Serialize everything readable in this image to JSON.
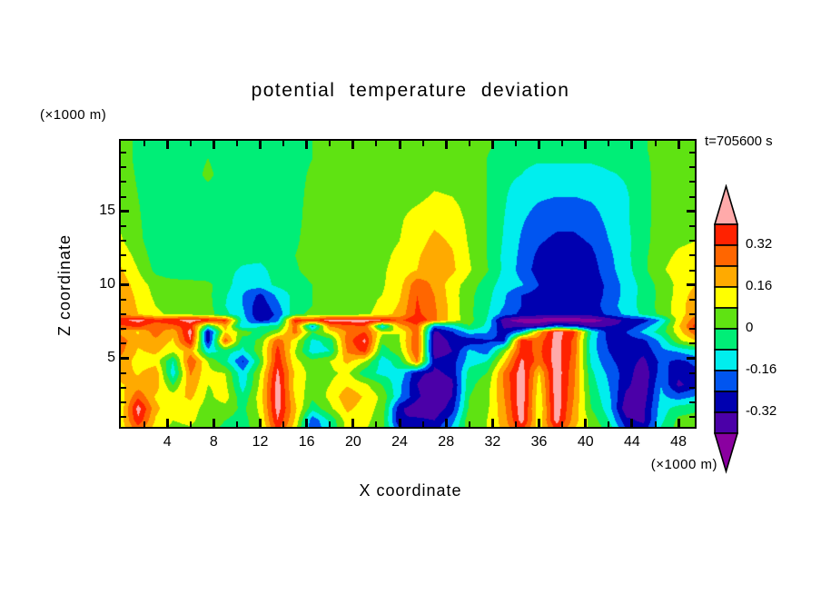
{
  "figure": {
    "title": "potential temperature deviation",
    "time_label": "t=705600 s",
    "x_axis": {
      "label": "X coordinate",
      "unit": "(×1000 m)"
    },
    "y_axis": {
      "label": "Z coordinate",
      "unit": "(×1000 m)"
    }
  },
  "colorbar": {
    "cell_colors_top_to_bottom": [
      "#ff2200",
      "#ff6600",
      "#ffaa00",
      "#ffff00",
      "#5fe312",
      "#00ee77",
      "#00eeee",
      "#0055f0",
      "#0000b0",
      "#4b00a8"
    ],
    "top_arrow_color": "#ffaaaa",
    "bottom_arrow_color": "#8a00a0",
    "labels": [
      {
        "text": "0.32",
        "boundary": 1
      },
      {
        "text": "0.16",
        "boundary": 3
      },
      {
        "text": "0",
        "boundary": 5
      },
      {
        "text": "-0.16",
        "boundary": 7
      },
      {
        "text": "-0.32",
        "boundary": 9
      }
    ]
  },
  "chart_data": {
    "type": "heatmap",
    "title": "potential temperature deviation",
    "xlabel": "X coordinate",
    "ylabel": "Z coordinate",
    "x_unit": "(×1000 m)",
    "z_unit": "(×1000 m)",
    "time": "t=705600 s",
    "x_range": [
      0,
      49.4
    ],
    "z_range": [
      0.35,
      19.8
    ],
    "x_major_ticks": [
      4,
      8,
      12,
      16,
      20,
      24,
      28,
      32,
      36,
      40,
      44,
      48
    ],
    "x_minor_step": 2,
    "y_major_ticks": [
      5,
      10,
      15
    ],
    "y_minor_step": 1,
    "levels": [
      -0.4,
      -0.32,
      -0.24,
      -0.16,
      -0.08,
      0.0,
      0.08,
      0.16,
      0.24,
      0.32,
      0.4
    ],
    "band_colors": [
      "#8a00a0",
      "#4b00a8",
      "#0000b0",
      "#0055f0",
      "#00eeee",
      "#00ee77",
      "#5fe312",
      "#ffff00",
      "#ffaa00",
      "#ff6600",
      "#ff2200",
      "#ffaaaa"
    ],
    "band_names": [
      "purple",
      "dark-violet",
      "navy",
      "blue",
      "cyan",
      "spring-green",
      "chartreuse",
      "yellow",
      "orange",
      "orange-red",
      "red",
      "pink"
    ],
    "xs": [
      0,
      1.5,
      3,
      4.5,
      6,
      7.5,
      9,
      10.5,
      12,
      13.5,
      15,
      16.5,
      18,
      19.5,
      21,
      22.5,
      24,
      25.5,
      27,
      28.5,
      30,
      31.5,
      33,
      34.5,
      36,
      37.5,
      39,
      40.5,
      42,
      43.5,
      45,
      46.5,
      48,
      49.5
    ],
    "zs": [
      0,
      0.8,
      1.6,
      2.4,
      3.2,
      4.0,
      4.8,
      5.5,
      6.2,
      6.8,
      7.2,
      7.6,
      8.0,
      8.6,
      9.3,
      10,
      11,
      12,
      13,
      14.5,
      16,
      17.5,
      18.6,
      19.3,
      19.8
    ],
    "values": [
      [
        0.1,
        0.25,
        0.1,
        0.05,
        0.06,
        0.02,
        -0.02,
        -0.04,
        0.05,
        0.32,
        0.1,
        -0.26,
        -0.1,
        0.1,
        0.08,
        0.04,
        -0.2,
        -0.22,
        -0.24,
        -0.12,
        0.05,
        0.08,
        0.18,
        0.3,
        0.12,
        0.3,
        0.15,
        0.06,
        0.0,
        -0.22,
        -0.26,
        -0.06,
        0.04,
        0.06
      ],
      [
        0.12,
        0.38,
        0.15,
        0.08,
        0.1,
        0.03,
        0.0,
        -0.04,
        0.08,
        0.4,
        0.15,
        -0.22,
        -0.06,
        0.12,
        0.1,
        0.04,
        -0.32,
        -0.3,
        -0.32,
        -0.2,
        0.06,
        0.08,
        0.2,
        0.44,
        0.1,
        0.44,
        0.2,
        0.05,
        -0.08,
        -0.3,
        -0.34,
        -0.1,
        0.02,
        0.04
      ],
      [
        0.1,
        0.44,
        0.18,
        0.1,
        0.12,
        0.04,
        0.05,
        -0.02,
        0.1,
        0.44,
        0.18,
        -0.05,
        0.06,
        0.18,
        0.12,
        0.05,
        -0.3,
        -0.38,
        -0.38,
        -0.28,
        0.02,
        0.06,
        0.22,
        0.46,
        0.08,
        0.46,
        0.22,
        0.0,
        -0.12,
        -0.38,
        -0.34,
        -0.12,
        -0.04,
        -0.02
      ],
      [
        0.12,
        0.3,
        0.15,
        0.12,
        0.18,
        0.06,
        0.12,
        -0.06,
        0.12,
        0.45,
        0.15,
        0.02,
        0.1,
        0.22,
        0.15,
        0.06,
        -0.15,
        -0.3,
        -0.4,
        -0.32,
        0.0,
        0.05,
        0.24,
        0.46,
        0.1,
        0.46,
        0.24,
        -0.02,
        -0.14,
        -0.34,
        -0.36,
        -0.14,
        -0.2,
        -0.15
      ],
      [
        0.15,
        0.2,
        0.2,
        0.0,
        0.22,
        0.08,
        0.1,
        -0.12,
        0.1,
        0.45,
        0.12,
        0.05,
        0.08,
        0.15,
        0.1,
        0.0,
        -0.14,
        -0.32,
        -0.38,
        -0.34,
        -0.02,
        0.04,
        0.25,
        0.46,
        0.12,
        0.46,
        0.25,
        -0.04,
        -0.16,
        -0.3,
        -0.38,
        -0.16,
        -0.34,
        -0.28
      ],
      [
        0.2,
        0.15,
        0.22,
        -0.13,
        0.25,
        0.1,
        0.08,
        -0.14,
        0.08,
        0.42,
        0.15,
        0.04,
        0.06,
        0.1,
        -0.05,
        -0.1,
        -0.1,
        -0.3,
        -0.34,
        -0.3,
        -0.04,
        0.0,
        0.26,
        0.45,
        0.15,
        0.46,
        0.26,
        -0.06,
        -0.18,
        -0.28,
        -0.38,
        -0.2,
        -0.3,
        -0.26
      ],
      [
        0.22,
        0.12,
        0.12,
        -0.08,
        0.32,
        0.08,
        -0.06,
        -0.25,
        0.0,
        0.38,
        0.1,
        0.03,
        0.08,
        0.18,
        0.08,
        -0.12,
        -0.04,
        0.25,
        -0.3,
        -0.28,
        -0.12,
        -0.08,
        0.15,
        0.42,
        0.28,
        0.45,
        0.28,
        -0.1,
        -0.22,
        -0.28,
        -0.34,
        -0.22,
        -0.26,
        -0.22
      ],
      [
        0.26,
        0.15,
        0.18,
        0.1,
        0.2,
        -0.12,
        -0.05,
        -0.1,
        0.05,
        0.35,
        0.08,
        -0.12,
        -0.08,
        0.25,
        0.35,
        -0.05,
        0.05,
        0.32,
        -0.38,
        -0.32,
        -0.14,
        -0.2,
        0.05,
        0.35,
        0.3,
        0.44,
        0.3,
        -0.12,
        -0.24,
        -0.3,
        -0.3,
        -0.18,
        -0.15,
        -0.1
      ],
      [
        0.28,
        0.18,
        0.22,
        0.15,
        0.4,
        -0.3,
        0.3,
        -0.05,
        0.02,
        0.3,
        0.12,
        -0.1,
        -0.05,
        0.28,
        0.42,
        0.02,
        0.08,
        0.32,
        -0.38,
        -0.3,
        -0.3,
        -0.25,
        -0.25,
        0.38,
        0.28,
        0.44,
        0.3,
        -0.12,
        -0.26,
        -0.28,
        -0.26,
        -0.14,
        0.06,
        0.15
      ],
      [
        0.22,
        0.15,
        0.28,
        0.18,
        0.44,
        -0.3,
        0.15,
        0.05,
        -0.05,
        0.05,
        0.28,
        0.0,
        0.12,
        0.25,
        0.32,
        0.1,
        0.08,
        0.3,
        -0.34,
        -0.25,
        -0.12,
        -0.15,
        -0.3,
        -0.15,
        0.2,
        0.44,
        0.34,
        -0.08,
        -0.28,
        -0.24,
        -0.14,
        -0.04,
        0.12,
        0.3
      ],
      [
        0.3,
        0.35,
        0.25,
        0.3,
        0.36,
        -0.05,
        0.2,
        -0.15,
        -0.08,
        -0.05,
        0.28,
        -0.2,
        0.25,
        0.3,
        0.32,
        -0.15,
        0.2,
        0.3,
        -0.2,
        -0.12,
        0.0,
        -0.1,
        -0.34,
        -0.35,
        -0.35,
        -0.2,
        -0.25,
        -0.35,
        -0.32,
        -0.3,
        -0.2,
        -0.08,
        0.15,
        0.36
      ],
      [
        0.38,
        0.43,
        0.36,
        0.38,
        0.44,
        0.38,
        0.34,
        -0.12,
        -0.28,
        -0.2,
        0.37,
        0.33,
        0.44,
        0.44,
        0.44,
        0.4,
        0.3,
        0.4,
        0.26,
        0.13,
        0.03,
        -0.08,
        -0.38,
        -0.44,
        -0.45,
        -0.45,
        -0.45,
        -0.44,
        -0.38,
        -0.3,
        -0.28,
        -0.15,
        0.12,
        0.3
      ],
      [
        0.24,
        0.16,
        0.09,
        0.07,
        0.06,
        0.04,
        -0.06,
        -0.14,
        -0.32,
        -0.22,
        -0.02,
        0.02,
        0.05,
        0.05,
        0.06,
        0.12,
        0.19,
        0.34,
        0.26,
        0.13,
        0.02,
        -0.07,
        -0.2,
        -0.26,
        -0.29,
        -0.31,
        -0.31,
        -0.29,
        -0.22,
        -0.14,
        -0.06,
        0.02,
        0.12,
        0.22
      ],
      [
        0.23,
        0.15,
        0.08,
        0.06,
        0.05,
        0.03,
        -0.08,
        -0.16,
        -0.3,
        -0.18,
        -0.04,
        0.0,
        0.04,
        0.05,
        0.05,
        0.1,
        0.17,
        0.33,
        0.25,
        0.13,
        0.02,
        -0.06,
        -0.16,
        -0.24,
        -0.28,
        -0.3,
        -0.3,
        -0.28,
        -0.2,
        -0.12,
        -0.05,
        0.03,
        0.12,
        0.22
      ],
      [
        0.22,
        0.14,
        0.06,
        0.05,
        0.04,
        0.02,
        -0.07,
        -0.16,
        -0.26,
        -0.14,
        -0.05,
        0.0,
        0.04,
        0.05,
        0.06,
        0.08,
        0.15,
        0.32,
        0.24,
        0.12,
        0.02,
        -0.05,
        -0.15,
        -0.24,
        -0.28,
        -0.3,
        -0.3,
        -0.28,
        -0.22,
        -0.13,
        -0.05,
        0.02,
        0.11,
        0.2
      ],
      [
        0.21,
        0.12,
        0.05,
        0.04,
        0.03,
        0.02,
        -0.05,
        -0.13,
        -0.12,
        -0.06,
        -0.04,
        0.0,
        0.04,
        0.05,
        0.05,
        0.07,
        0.13,
        0.3,
        0.22,
        0.12,
        0.04,
        -0.04,
        -0.12,
        -0.15,
        -0.24,
        -0.29,
        -0.3,
        -0.29,
        -0.22,
        -0.13,
        -0.05,
        0.03,
        0.1,
        0.16
      ],
      [
        0.17,
        0.08,
        -0.02,
        -0.06,
        -0.06,
        -0.06,
        -0.06,
        -0.09,
        -0.1,
        -0.05,
        -0.01,
        0.03,
        0.05,
        0.05,
        0.06,
        0.07,
        0.11,
        0.16,
        0.22,
        0.18,
        0.09,
        0.01,
        -0.1,
        -0.19,
        -0.28,
        -0.3,
        -0.3,
        -0.28,
        -0.19,
        -0.11,
        -0.02,
        0.07,
        0.11,
        0.12
      ],
      [
        0.13,
        0.05,
        -0.04,
        -0.06,
        -0.06,
        -0.06,
        -0.06,
        -0.06,
        -0.06,
        -0.04,
        0.0,
        0.03,
        0.05,
        0.05,
        0.05,
        0.06,
        0.1,
        0.15,
        0.2,
        0.17,
        0.08,
        0.0,
        -0.1,
        -0.18,
        -0.26,
        -0.29,
        -0.29,
        -0.26,
        -0.18,
        -0.1,
        -0.02,
        0.06,
        0.09,
        0.1
      ],
      [
        0.09,
        0.02,
        -0.05,
        -0.05,
        -0.05,
        -0.05,
        -0.05,
        -0.05,
        -0.05,
        -0.03,
        -0.01,
        0.03,
        0.05,
        0.05,
        0.05,
        0.05,
        0.08,
        0.13,
        0.18,
        0.15,
        0.07,
        0.0,
        -0.09,
        -0.17,
        -0.23,
        -0.26,
        -0.26,
        -0.23,
        -0.16,
        -0.1,
        -0.03,
        0.05,
        0.07,
        0.08
      ],
      [
        0.06,
        0.01,
        -0.05,
        -0.05,
        -0.05,
        -0.05,
        -0.05,
        -0.05,
        -0.05,
        -0.02,
        -0.02,
        0.03,
        0.05,
        0.05,
        0.05,
        0.05,
        0.07,
        0.11,
        0.14,
        0.12,
        0.06,
        0.0,
        -0.08,
        -0.15,
        -0.19,
        -0.21,
        -0.21,
        -0.19,
        -0.14,
        -0.09,
        -0.03,
        0.04,
        0.05,
        0.06
      ],
      [
        0.05,
        0.0,
        -0.05,
        -0.05,
        -0.04,
        -0.04,
        -0.05,
        -0.05,
        -0.04,
        -0.02,
        -0.02,
        0.02,
        0.05,
        0.05,
        0.05,
        0.05,
        0.05,
        0.06,
        0.09,
        0.08,
        0.05,
        0.0,
        -0.07,
        -0.13,
        -0.15,
        -0.16,
        -0.16,
        -0.15,
        -0.13,
        -0.09,
        -0.03,
        0.04,
        0.05,
        0.05
      ],
      [
        0.04,
        -0.01,
        -0.04,
        -0.04,
        -0.04,
        0.02,
        -0.04,
        -0.05,
        -0.04,
        -0.03,
        -0.02,
        0.01,
        0.04,
        0.04,
        0.04,
        0.04,
        0.04,
        0.05,
        0.05,
        0.05,
        0.04,
        0.0,
        -0.06,
        -0.08,
        -0.13,
        -0.13,
        -0.13,
        -0.12,
        -0.09,
        -0.07,
        -0.03,
        0.04,
        0.04,
        0.04
      ],
      [
        0.04,
        -0.02,
        -0.04,
        -0.04,
        -0.04,
        0.0,
        -0.04,
        -0.05,
        -0.04,
        -0.03,
        -0.02,
        0.0,
        0.04,
        0.04,
        0.04,
        0.04,
        0.04,
        0.04,
        0.04,
        0.04,
        0.04,
        0.0,
        -0.05,
        -0.05,
        -0.06,
        -0.06,
        -0.06,
        -0.06,
        -0.05,
        -0.05,
        -0.02,
        0.04,
        0.04,
        0.04
      ],
      [
        0.04,
        -0.02,
        -0.04,
        -0.04,
        -0.04,
        -0.04,
        -0.04,
        -0.05,
        -0.04,
        -0.03,
        -0.01,
        0.0,
        0.04,
        0.04,
        0.04,
        0.04,
        0.04,
        0.04,
        0.04,
        0.04,
        0.04,
        0.01,
        -0.03,
        -0.04,
        -0.05,
        -0.05,
        -0.05,
        -0.05,
        -0.04,
        -0.04,
        -0.01,
        0.04,
        0.04,
        0.04
      ],
      [
        0.04,
        -0.02,
        -0.04,
        -0.04,
        -0.04,
        -0.04,
        -0.04,
        -0.05,
        -0.04,
        -0.03,
        -0.01,
        0.0,
        0.04,
        0.04,
        0.04,
        0.04,
        0.04,
        0.04,
        0.04,
        0.04,
        0.04,
        0.01,
        -0.03,
        -0.04,
        -0.05,
        -0.05,
        -0.05,
        -0.05,
        -0.04,
        -0.04,
        -0.01,
        0.04,
        0.04,
        0.04
      ]
    ]
  }
}
